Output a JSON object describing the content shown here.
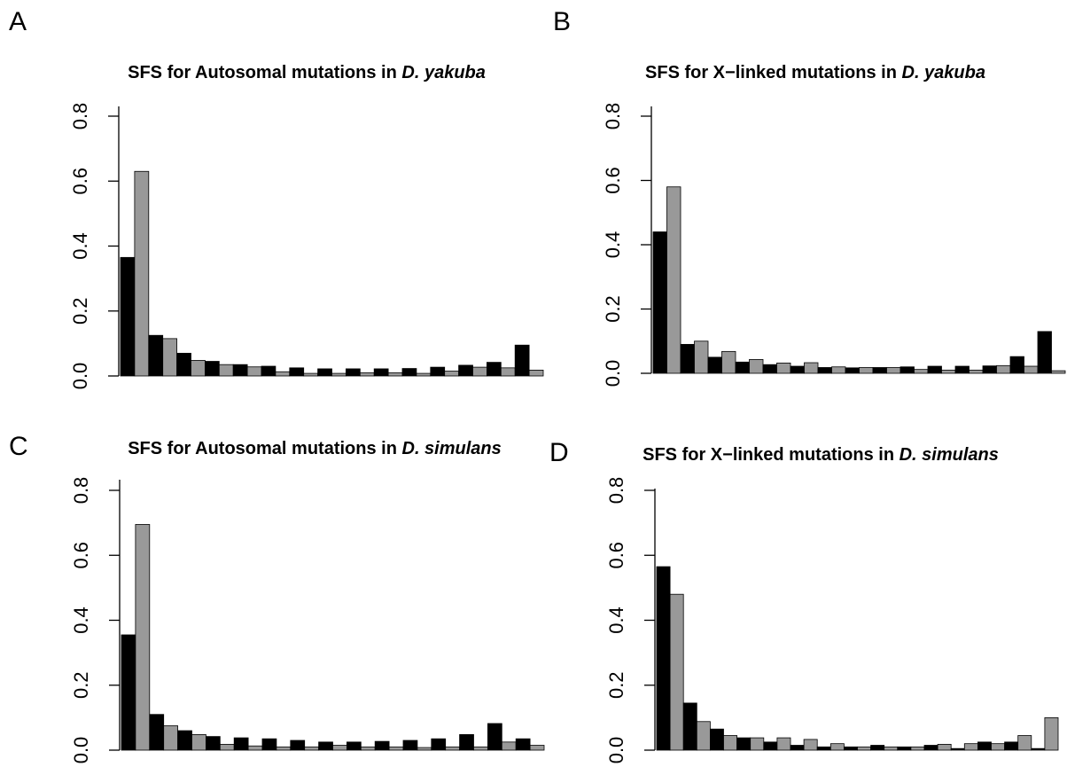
{
  "colors": {
    "series_a": "#000000",
    "series_b": "#999999",
    "axis": "#000000",
    "background": "#ffffff"
  },
  "chart_data": [
    {
      "type": "bar",
      "panel": "A",
      "title_prefix": "SFS for Autosomal mutations in ",
      "title_species": "D. yakuba",
      "xlabel": "",
      "ylabel": "",
      "ylim": [
        0,
        0.8
      ],
      "y_ticks": [
        "0.0",
        "0.2",
        "0.4",
        "0.6",
        "0.8"
      ],
      "grid": false,
      "series": [
        {
          "values": [
            0.365,
            0.125,
            0.07,
            0.045,
            0.035,
            0.03,
            0.025,
            0.022,
            0.022,
            0.022,
            0.023,
            0.027,
            0.033,
            0.042,
            0.095
          ]
        },
        {
          "values": [
            0.63,
            0.115,
            0.048,
            0.035,
            0.028,
            0.013,
            0.008,
            0.008,
            0.01,
            0.01,
            0.008,
            0.015,
            0.027,
            0.025,
            0.018
          ]
        }
      ]
    },
    {
      "type": "bar",
      "panel": "B",
      "title_prefix": "SFS for X−linked mutations in ",
      "title_species": "D. yakuba",
      "xlabel": "",
      "ylabel": "",
      "ylim": [
        0,
        0.8
      ],
      "y_ticks": [
        "0.0",
        "0.2",
        "0.4",
        "0.6",
        "0.8"
      ],
      "grid": false,
      "series": [
        {
          "values": [
            0.44,
            0.09,
            0.05,
            0.035,
            0.027,
            0.022,
            0.018,
            0.017,
            0.018,
            0.02,
            0.022,
            0.022,
            0.023,
            0.052,
            0.13
          ]
        },
        {
          "values": [
            0.58,
            0.1,
            0.068,
            0.043,
            0.032,
            0.033,
            0.02,
            0.018,
            0.018,
            0.012,
            0.01,
            0.01,
            0.024,
            0.022,
            0.008
          ]
        }
      ]
    },
    {
      "type": "bar",
      "panel": "C",
      "title_prefix": "SFS for Autosomal mutations in ",
      "title_species": "D. simulans",
      "xlabel": "",
      "ylabel": "",
      "ylim": [
        0,
        0.8
      ],
      "y_ticks": [
        "0.0",
        "0.2",
        "0.4",
        "0.6",
        "0.8"
      ],
      "grid": false,
      "series": [
        {
          "values": [
            0.355,
            0.11,
            0.06,
            0.042,
            0.038,
            0.035,
            0.03,
            0.025,
            0.025,
            0.027,
            0.03,
            0.035,
            0.048,
            0.082,
            0.035
          ]
        },
        {
          "values": [
            0.695,
            0.075,
            0.048,
            0.018,
            0.013,
            0.01,
            0.01,
            0.015,
            0.01,
            0.01,
            0.008,
            0.01,
            0.01,
            0.025,
            0.015
          ]
        }
      ]
    },
    {
      "type": "bar",
      "panel": "D",
      "title_prefix": "SFS for X−linked mutations in ",
      "title_species": "D. simulans",
      "xlabel": "",
      "ylabel": "",
      "ylim": [
        0,
        0.8
      ],
      "y_ticks": [
        "0.0",
        "0.2",
        "0.4",
        "0.6",
        "0.8"
      ],
      "grid": false,
      "series": [
        {
          "values": [
            0.565,
            0.145,
            0.065,
            0.038,
            0.025,
            0.015,
            0.01,
            0.01,
            0.015,
            0.01,
            0.015,
            0.005,
            0.025,
            0.025,
            0.005
          ]
        },
        {
          "values": [
            0.48,
            0.088,
            0.045,
            0.038,
            0.038,
            0.033,
            0.02,
            0.01,
            0.01,
            0.01,
            0.018,
            0.02,
            0.02,
            0.045,
            0.1
          ]
        }
      ]
    }
  ]
}
